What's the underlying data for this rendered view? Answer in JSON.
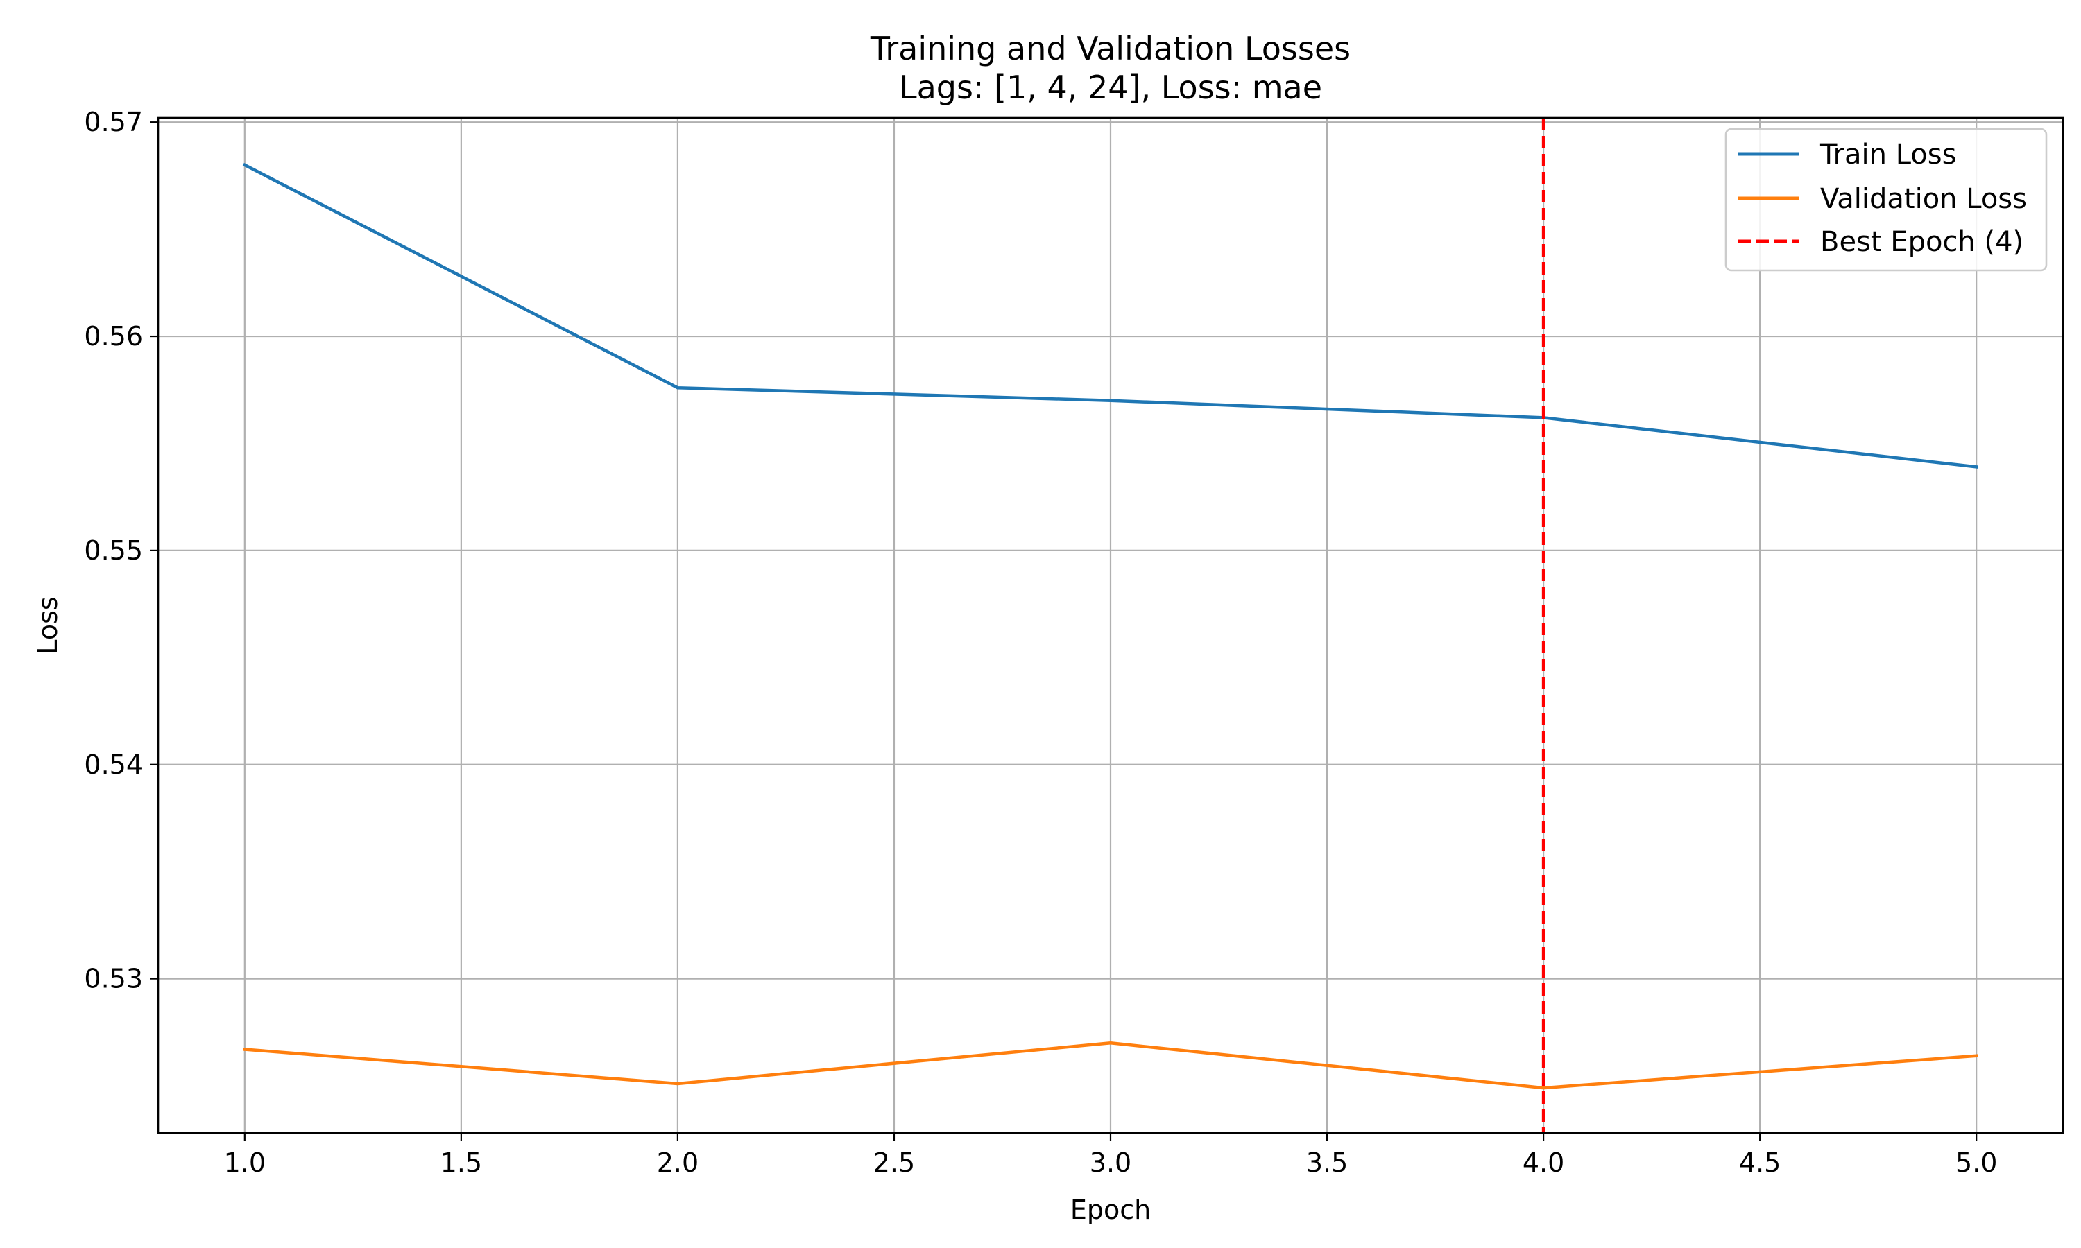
{
  "chart_data": {
    "type": "line",
    "title": "Training and Validation Losses",
    "subtitle": "Lags: [1, 4, 24], Loss: mae",
    "xlabel": "Epoch",
    "ylabel": "Loss",
    "xlim": [
      0.8,
      5.2
    ],
    "ylim": [
      0.5228,
      0.5702
    ],
    "xticks": [
      1.0,
      1.5,
      2.0,
      2.5,
      3.0,
      3.5,
      4.0,
      4.5,
      5.0
    ],
    "xtick_labels": [
      "1.0",
      "1.5",
      "2.0",
      "2.5",
      "3.0",
      "3.5",
      "4.0",
      "4.5",
      "5.0"
    ],
    "yticks": [
      0.53,
      0.54,
      0.55,
      0.56,
      0.57
    ],
    "ytick_labels": [
      "0.53",
      "0.54",
      "0.55",
      "0.56",
      "0.57"
    ],
    "grid": true,
    "legend_position": "top-right",
    "series": [
      {
        "name": "Train Loss",
        "color": "#1f77b4",
        "style": "solid",
        "x": [
          1,
          2,
          3,
          4,
          5
        ],
        "values": [
          0.568,
          0.5576,
          0.557,
          0.5562,
          0.5539
        ]
      },
      {
        "name": "Validation Loss",
        "color": "#ff7f0e",
        "style": "solid",
        "x": [
          1,
          2,
          3,
          4,
          5
        ],
        "values": [
          0.5267,
          0.5251,
          0.527,
          0.5249,
          0.5264
        ]
      }
    ],
    "vline": {
      "name": "Best Epoch (4)",
      "x": 4,
      "color": "#ff0000",
      "style": "dashed"
    }
  }
}
